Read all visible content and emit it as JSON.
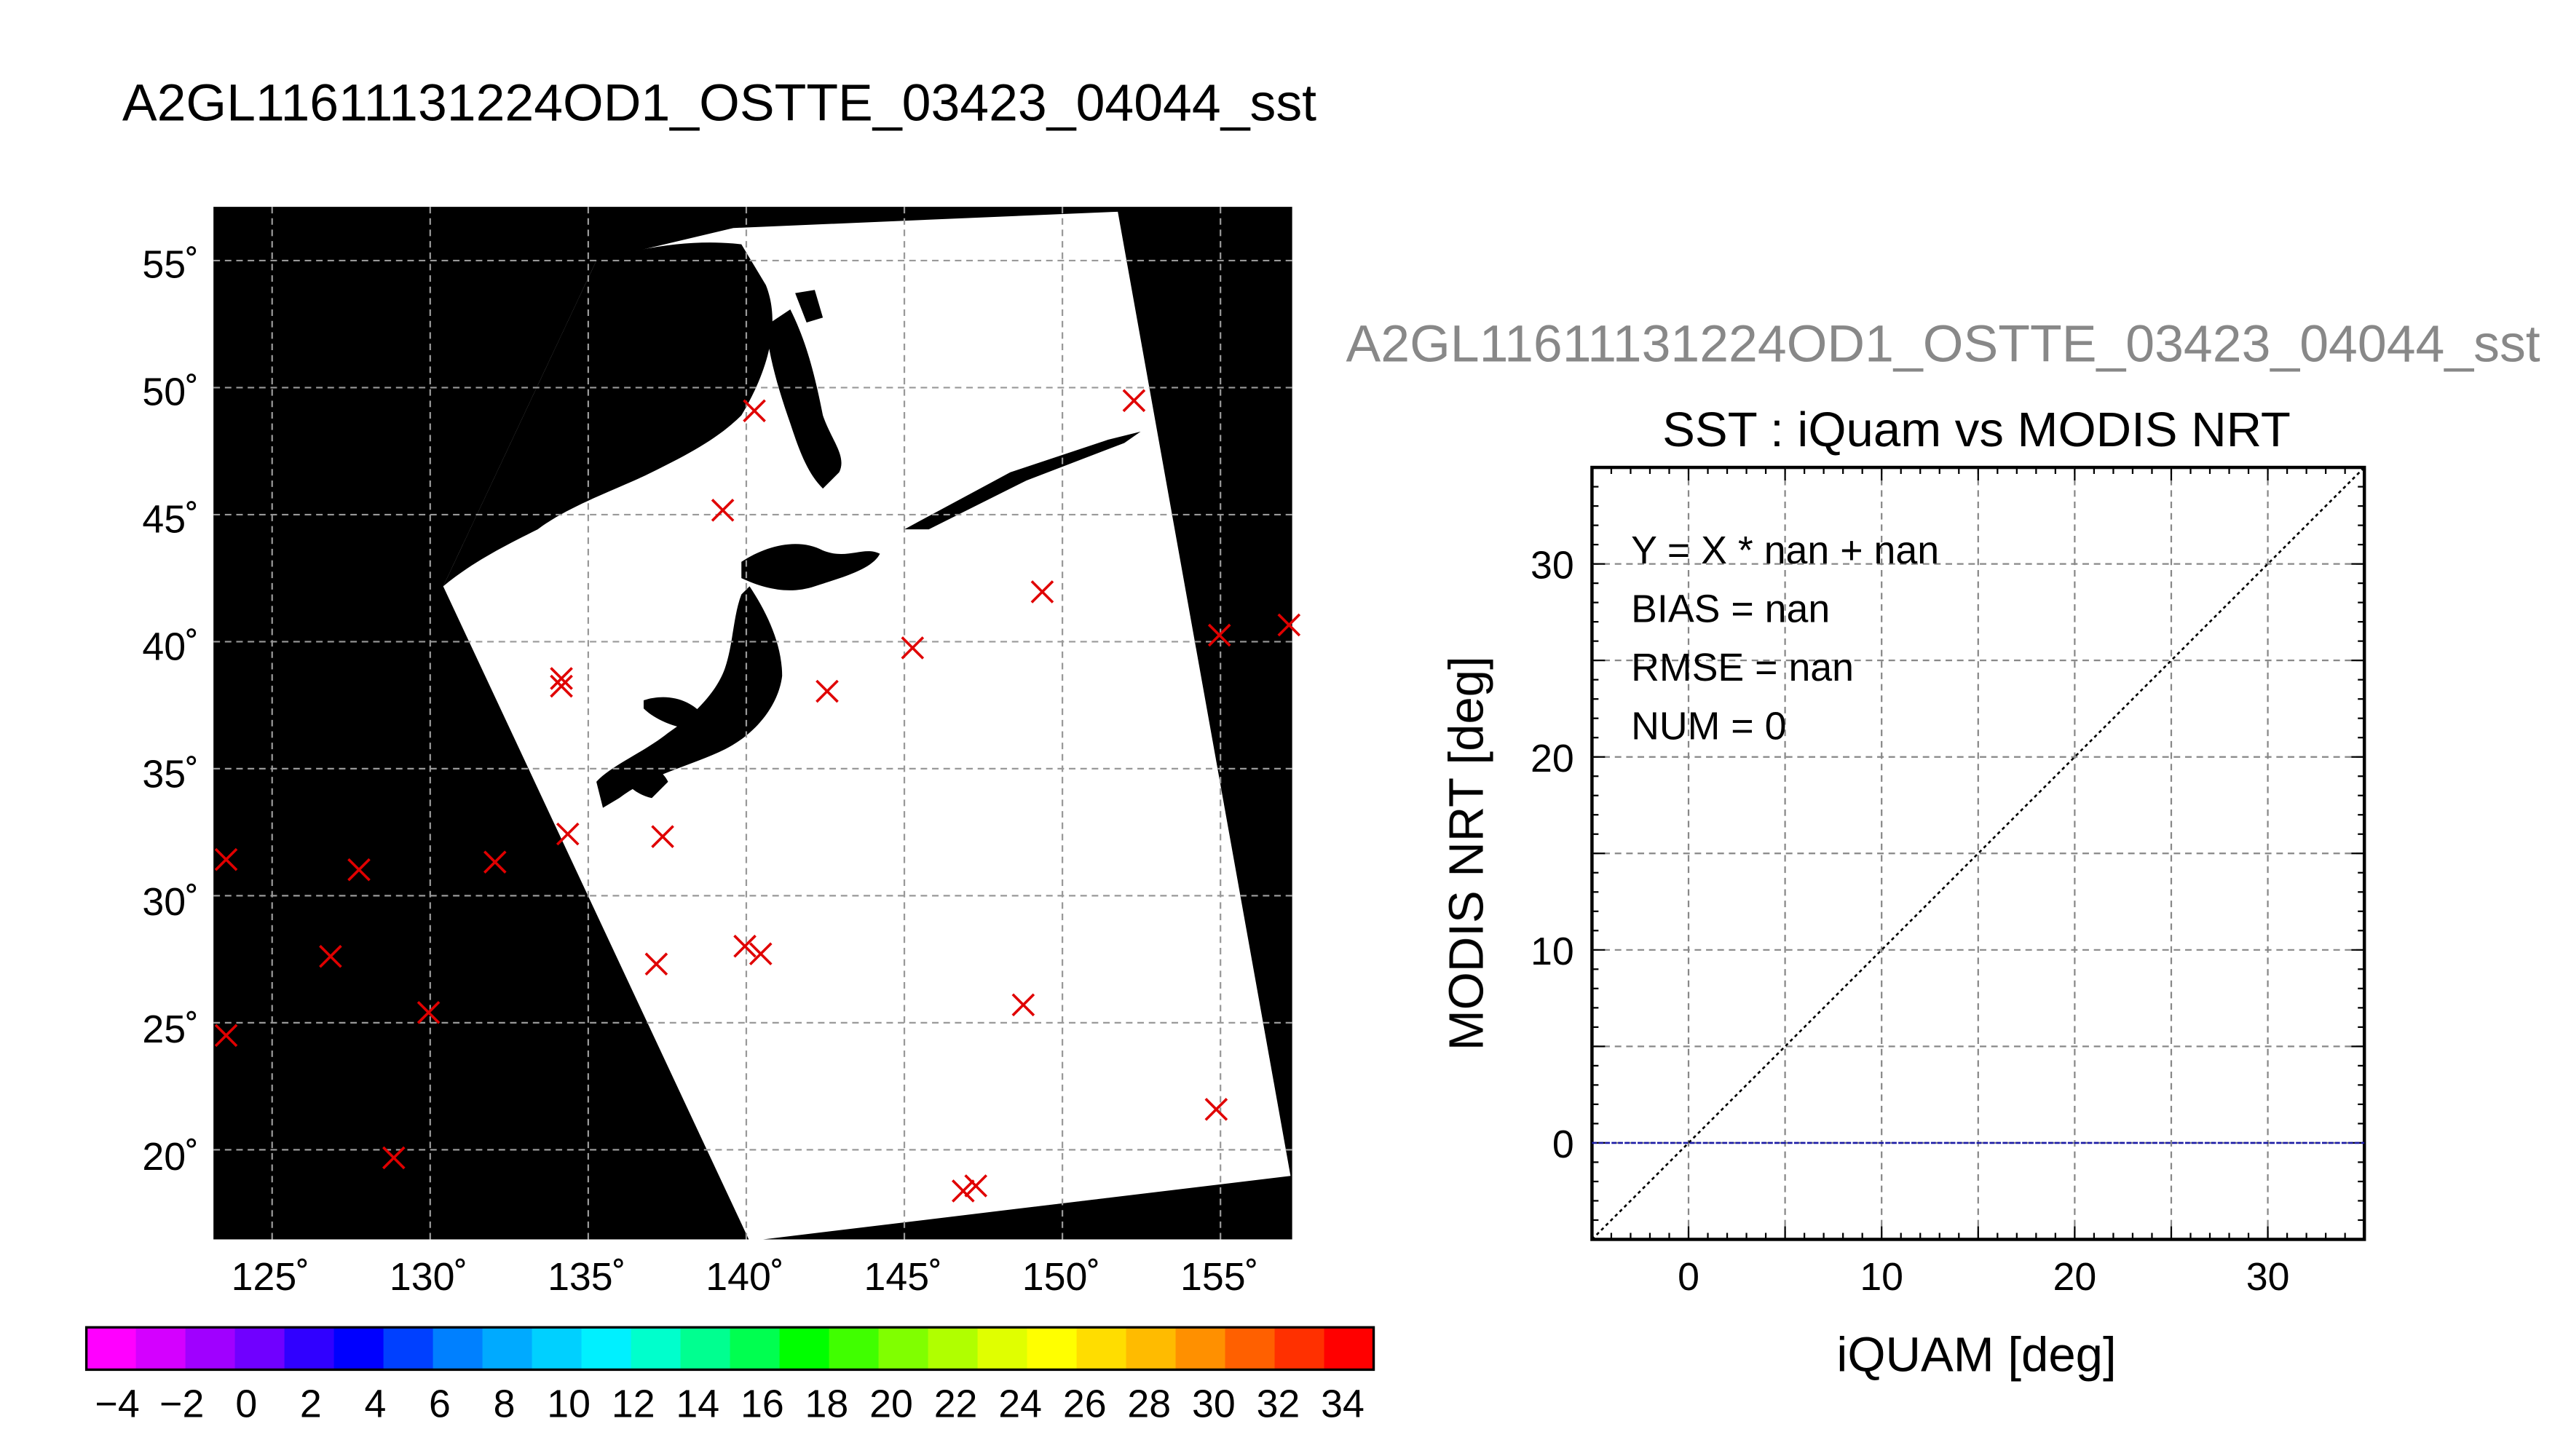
{
  "page_title": "A2GL11611131224OD1_OSTTE_03423_04044_sst",
  "scatter_file_title": "A2GL11611131224OD1_OSTTE_03423_04044_sst",
  "colors": {
    "land": "#000000",
    "ocean_nodata": "#ffffff",
    "match_marker": "#e00000",
    "zero_line": "#1a1aa6",
    "gray_title": "#888888"
  },
  "colorbar": {
    "tick_labels": [
      "−4",
      "−2",
      "0",
      "2",
      "4",
      "6",
      "8",
      "10",
      "12",
      "14",
      "16",
      "18",
      "20",
      "22",
      "24",
      "26",
      "28",
      "30",
      "32",
      "34"
    ],
    "colors": [
      "#ff00ff",
      "#d400ff",
      "#a000ff",
      "#7000ff",
      "#3000ff",
      "#0000ff",
      "#0040ff",
      "#0080ff",
      "#00aaff",
      "#00d0ff",
      "#00f0ff",
      "#00ffcc",
      "#00ff90",
      "#00ff50",
      "#00ff00",
      "#40ff00",
      "#80ff00",
      "#b0ff00",
      "#e0ff00",
      "#ffff00",
      "#ffdd00",
      "#ffbb00",
      "#ff9000",
      "#ff6000",
      "#ff3000",
      "#ff0000"
    ]
  },
  "chart_data": [
    {
      "type": "map",
      "lon_tick_labels": [
        "125˚",
        "130˚",
        "135˚",
        "140˚",
        "145˚",
        "150˚",
        "155˚"
      ],
      "lat_tick_labels": [
        "55˚",
        "50˚",
        "45˚",
        "40˚",
        "35˚",
        "30˚",
        "25˚",
        "20˚"
      ],
      "lon_ticks": [
        125,
        130,
        135,
        140,
        145,
        150,
        155
      ],
      "lat_ticks": [
        55,
        50,
        45,
        40,
        35,
        30,
        25,
        20
      ],
      "xlim": [
        123.2,
        157.3
      ],
      "ylim": [
        16.7,
        57.2
      ],
      "grid": true,
      "match_points": [
        [
          123.6,
          31.6
        ],
        [
          123.6,
          24.7
        ],
        [
          126.9,
          27.8
        ],
        [
          127.8,
          31.2
        ],
        [
          128.9,
          19.9
        ],
        [
          130.0,
          25.6
        ],
        [
          132.1,
          31.5
        ],
        [
          134.2,
          38.4
        ],
        [
          134.2,
          38.7
        ],
        [
          134.4,
          32.6
        ],
        [
          137.2,
          27.5
        ],
        [
          137.4,
          32.5
        ],
        [
          139.3,
          45.3
        ],
        [
          140.0,
          28.2
        ],
        [
          140.3,
          49.2
        ],
        [
          140.5,
          27.9
        ],
        [
          142.6,
          38.2
        ],
        [
          145.3,
          39.9
        ],
        [
          149.4,
          42.1
        ],
        [
          148.8,
          25.9
        ],
        [
          146.9,
          18.6
        ],
        [
          147.3,
          18.8
        ],
        [
          152.3,
          49.6
        ],
        [
          155.0,
          40.4
        ],
        [
          154.9,
          21.8
        ],
        [
          157.2,
          40.8
        ]
      ]
    },
    {
      "type": "scatter",
      "title": "SST : iQuam vs MODIS NRT",
      "xlabel": "iQUAM [deg]",
      "ylabel": "MODIS NRT [deg]",
      "xlim": [
        -5,
        35
      ],
      "ylim": [
        -5,
        35
      ],
      "x_ticks": [
        0,
        10,
        20,
        30
      ],
      "y_ticks": [
        0,
        10,
        20,
        30
      ],
      "grid": true,
      "reference_line": "y = x",
      "zero_line_y": 0,
      "points": [],
      "stats": [
        "Y = X * nan + nan",
        "BIAS = nan",
        "RMSE = nan",
        "NUM = 0"
      ]
    }
  ]
}
